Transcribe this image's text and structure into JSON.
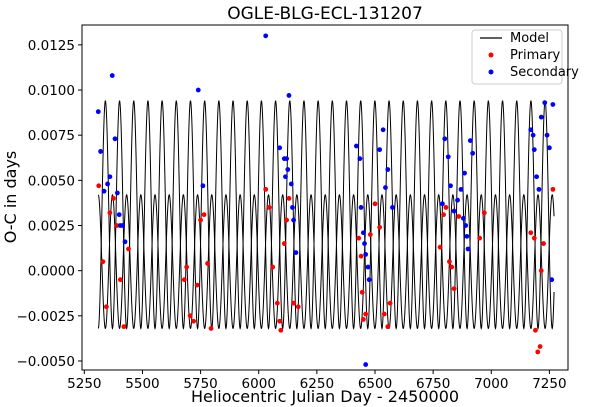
{
  "chart_data": {
    "type": "scatter",
    "title": "OGLE-BLG-ECL-131207",
    "xlabel": "Heliocentric Julian Day - 2450000",
    "ylabel": "O-C in days",
    "xlim": [
      5240,
      7330
    ],
    "ylim": [
      -0.0055,
      0.0136
    ],
    "xticks": [
      5250,
      5500,
      5750,
      6000,
      6250,
      6500,
      6750,
      7000,
      7250
    ],
    "yticks": [
      -0.005,
      -0.0025,
      0.0,
      0.0025,
      0.005,
      0.0075,
      0.01,
      0.0125
    ],
    "grid": false,
    "legend_position": "top-right",
    "colors": {
      "model": "#000000",
      "primary": "#ff0000",
      "secondary": "#0000ff"
    },
    "series": [
      {
        "name": "Model",
        "kind": "line",
        "model": {
          "x_start": 5310,
          "x_end": 7270,
          "period": 61,
          "primary_center": 0.0005,
          "primary_amplitude": 0.0037,
          "secondary_center": 0.0031,
          "secondary_amplitude": 0.0063
        }
      },
      {
        "name": "Primary",
        "kind": "points",
        "points": [
          [
            5312,
            0.0047
          ],
          [
            5330,
            0.0005
          ],
          [
            5345,
            -0.002
          ],
          [
            5360,
            0.0032
          ],
          [
            5375,
            0.004
          ],
          [
            5390,
            0.0025
          ],
          [
            5405,
            -0.0005
          ],
          [
            5420,
            -0.0031
          ],
          [
            5440,
            0.0012
          ],
          [
            5680,
            -0.0005
          ],
          [
            5690,
            0.0002
          ],
          [
            5705,
            -0.0025
          ],
          [
            5720,
            -0.0028
          ],
          [
            5735,
            -0.0008
          ],
          [
            5750,
            0.0028
          ],
          [
            5765,
            0.0031
          ],
          [
            5780,
            0.0004
          ],
          [
            5795,
            -0.0032
          ],
          [
            6030,
            0.0045
          ],
          [
            6045,
            0.0035
          ],
          [
            6060,
            0.0002
          ],
          [
            6080,
            -0.0018
          ],
          [
            6090,
            -0.0028
          ],
          [
            6095,
            -0.0033
          ],
          [
            6110,
            0.0015
          ],
          [
            6120,
            0.0028
          ],
          [
            6130,
            0.004
          ],
          [
            6150,
            -0.0018
          ],
          [
            6170,
            -0.002
          ],
          [
            6430,
            0.0018
          ],
          [
            6440,
            0.0008
          ],
          [
            6445,
            -0.0012
          ],
          [
            6450,
            -0.0027
          ],
          [
            6460,
            -0.0024
          ],
          [
            6480,
            0.002
          ],
          [
            6500,
            0.0037
          ],
          [
            6520,
            0.0024
          ],
          [
            6540,
            -0.0024
          ],
          [
            6555,
            -0.0031
          ],
          [
            6565,
            -0.0018
          ],
          [
            6780,
            0.0013
          ],
          [
            6795,
            0.0031
          ],
          [
            6805,
            0.0035
          ],
          [
            6820,
            0.0005
          ],
          [
            6830,
            0.0002
          ],
          [
            6840,
            -0.001
          ],
          [
            6860,
            0.003
          ],
          [
            6950,
            0.0018
          ],
          [
            6970,
            0.0032
          ],
          [
            7170,
            0.0021
          ],
          [
            7185,
            0.0018
          ],
          [
            7190,
            -0.0033
          ],
          [
            7200,
            -0.0045
          ],
          [
            7210,
            -0.0042
          ],
          [
            7215,
            0.0
          ],
          [
            7225,
            0.0015
          ],
          [
            7265,
            0.0045
          ]
        ]
      },
      {
        "name": "Secondary",
        "kind": "points",
        "points": [
          [
            5310,
            0.0088
          ],
          [
            5320,
            0.0066
          ],
          [
            5335,
            0.0044
          ],
          [
            5350,
            0.0048
          ],
          [
            5360,
            0.0052
          ],
          [
            5370,
            0.0108
          ],
          [
            5382,
            0.0073
          ],
          [
            5392,
            0.0043
          ],
          [
            5400,
            0.0031
          ],
          [
            5405,
            0.0025
          ],
          [
            5415,
            0.0025
          ],
          [
            5425,
            0.0016
          ],
          [
            5740,
            0.01
          ],
          [
            5760,
            0.0047
          ],
          [
            6030,
            0.013
          ],
          [
            6090,
            0.0068
          ],
          [
            6110,
            0.0062
          ],
          [
            6115,
            0.0052
          ],
          [
            6120,
            0.0062
          ],
          [
            6125,
            0.0056
          ],
          [
            6130,
            0.0097
          ],
          [
            6140,
            0.0048
          ],
          [
            6145,
            0.0035
          ],
          [
            6150,
            0.0028
          ],
          [
            6160,
            0.001
          ],
          [
            6420,
            0.0069
          ],
          [
            6435,
            0.0062
          ],
          [
            6440,
            0.0035
          ],
          [
            6450,
            0.0021
          ],
          [
            6455,
            0.0015
          ],
          [
            6460,
            0.0009
          ],
          [
            6470,
            0.0002
          ],
          [
            6475,
            -0.0005
          ],
          [
            6460,
            -0.0052
          ],
          [
            6520,
            0.0067
          ],
          [
            6535,
            0.0078
          ],
          [
            6545,
            0.0046
          ],
          [
            6555,
            0.0056
          ],
          [
            6575,
            0.0035
          ],
          [
            6790,
            0.0037
          ],
          [
            6800,
            0.0073
          ],
          [
            6815,
            0.0063
          ],
          [
            6825,
            0.0047
          ],
          [
            6840,
            0.0033
          ],
          [
            6855,
            0.0039
          ],
          [
            6870,
            0.0045
          ],
          [
            6885,
            0.0054
          ],
          [
            6880,
            0.0029
          ],
          [
            6890,
            0.0025
          ],
          [
            6895,
            0.0019
          ],
          [
            6900,
            0.0012
          ],
          [
            6910,
            0.0072
          ],
          [
            6920,
            0.0065
          ],
          [
            7170,
            0.0078
          ],
          [
            7180,
            0.0075
          ],
          [
            7185,
            0.0067
          ],
          [
            7195,
            0.0052
          ],
          [
            7205,
            0.0045
          ],
          [
            7215,
            0.0085
          ],
          [
            7230,
            0.0093
          ],
          [
            7240,
            0.0075
          ],
          [
            7250,
            0.0068
          ],
          [
            7265,
            0.0092
          ],
          [
            7260,
            -0.0005
          ]
        ]
      }
    ]
  }
}
